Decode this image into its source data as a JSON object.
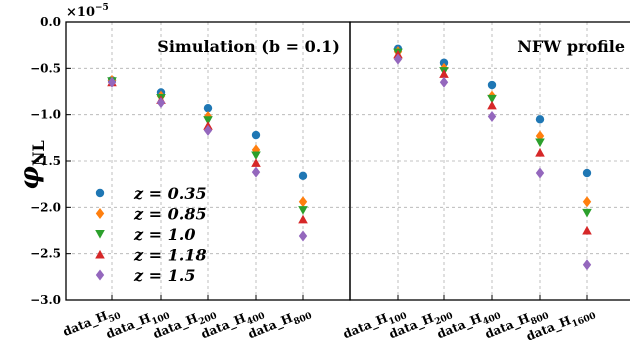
{
  "figure": {
    "ylabel": "φ",
    "ylabel_sub": "NL",
    "yaxis_multiplier_base": "×10",
    "yaxis_multiplier_exp": "−5"
  },
  "legend": {
    "items": [
      {
        "label": "z = 0.35",
        "color": "#1f77b4",
        "marker": "circle"
      },
      {
        "label": "z = 0.85",
        "color": "#ff7f0e",
        "marker": "diamond"
      },
      {
        "label": "z = 1.0",
        "color": "#2ca02c",
        "marker": "triangle-down"
      },
      {
        "label": "z = 1.18",
        "color": "#d62728",
        "marker": "triangle-up"
      },
      {
        "label": "z = 1.5",
        "color": "#9467bd",
        "marker": "diamond"
      }
    ]
  },
  "chart_data": [
    {
      "type": "scatter",
      "title": "Simulation (b = 0.1)",
      "ylim": [
        -3.0,
        0.0
      ],
      "yticks": [
        "0.0",
        "−0.5",
        "−1.0",
        "−1.5",
        "−2.0",
        "−2.5",
        "−3.0"
      ],
      "categories": [
        {
          "base": "data_H",
          "sub": "50"
        },
        {
          "base": "data_H",
          "sub": "100"
        },
        {
          "base": "data_H",
          "sub": "200"
        },
        {
          "base": "data_H",
          "sub": "400"
        },
        {
          "base": "data_H",
          "sub": "800"
        }
      ],
      "grid": true,
      "series": [
        {
          "name": "z = 0.35",
          "values": [
            -0.63,
            -0.76,
            -0.93,
            -1.22,
            -1.66
          ]
        },
        {
          "name": "z = 0.85",
          "values": [
            -0.63,
            -0.8,
            -1.02,
            -1.38,
            -1.94
          ]
        },
        {
          "name": "z = 1.0",
          "values": [
            -0.64,
            -0.82,
            -1.06,
            -1.44,
            -2.03
          ]
        },
        {
          "name": "z = 1.18",
          "values": [
            -0.65,
            -0.84,
            -1.12,
            -1.52,
            -2.13
          ]
        },
        {
          "name": "z = 1.5",
          "values": [
            -0.65,
            -0.87,
            -1.17,
            -1.62,
            -2.31
          ]
        }
      ]
    },
    {
      "type": "scatter",
      "title": "NFW profile",
      "ylim": [
        -3.0,
        0.0
      ],
      "categories": [
        {
          "base": "data_H",
          "sub": "100"
        },
        {
          "base": "data_H",
          "sub": "200"
        },
        {
          "base": "data_H",
          "sub": "400"
        },
        {
          "base": "data_H",
          "sub": "800"
        },
        {
          "base": "data_H",
          "sub": "1600"
        }
      ],
      "grid": true,
      "series": [
        {
          "name": "z = 0.35",
          "values": [
            -0.29,
            -0.44,
            -0.68,
            -1.05,
            -1.63
          ]
        },
        {
          "name": "z = 0.85",
          "values": [
            -0.32,
            -0.5,
            -0.8,
            -1.23,
            -1.94
          ]
        },
        {
          "name": "z = 1.0",
          "values": [
            -0.33,
            -0.53,
            -0.83,
            -1.3,
            -2.06
          ]
        },
        {
          "name": "z = 1.18",
          "values": [
            -0.35,
            -0.56,
            -0.9,
            -1.41,
            -2.25
          ]
        },
        {
          "name": "z = 1.5",
          "values": [
            -0.4,
            -0.65,
            -1.02,
            -1.63,
            -2.62
          ]
        }
      ]
    }
  ]
}
